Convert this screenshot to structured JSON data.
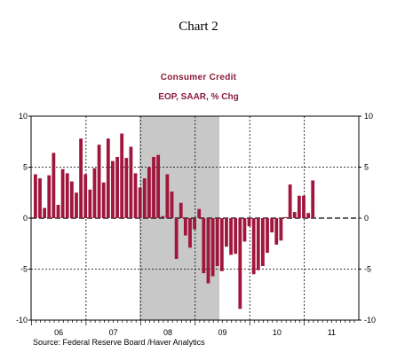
{
  "header": {
    "figure_label": "Chart 2"
  },
  "footer": {
    "source": "Source:  Federal Reserve Board /Haver Analytics"
  },
  "colors": {
    "bars": "#a0163c",
    "recession_shading": "#c8c8c8",
    "title_accent": "#8b1a3a"
  },
  "chart_data": {
    "type": "bar",
    "title": "Consumer Credit",
    "subtitle": "EOP, SAAR, % Chg",
    "grid": true,
    "ylim": [
      -10,
      10
    ],
    "y_ticks": [
      -10,
      -5,
      0,
      5,
      10
    ],
    "y_tick_labels": [
      "-10",
      "-5",
      "0",
      "5",
      "10"
    ],
    "x_tick_labels": [
      "06",
      "07",
      "08",
      "09",
      "10",
      "11"
    ],
    "start": "2006-01",
    "frequency": "monthly",
    "recession": {
      "start": "2007-12",
      "end": "2009-06"
    },
    "values": [
      4.3,
      3.9,
      1.0,
      4.2,
      6.4,
      1.3,
      4.8,
      4.4,
      3.6,
      2.5,
      7.8,
      4.3,
      2.8,
      4.9,
      7.2,
      3.5,
      7.8,
      5.6,
      6.0,
      8.3,
      5.9,
      7.0,
      4.4,
      3.0,
      3.9,
      5.0,
      6.0,
      6.2,
      0.2,
      4.3,
      2.6,
      -4.0,
      1.5,
      -1.7,
      -2.9,
      -1.1,
      0.9,
      -5.4,
      -6.4,
      -5.7,
      -4.7,
      -5.2,
      -2.8,
      -3.6,
      -3.5,
      -8.9,
      -2.3,
      -0.8,
      -5.5,
      -5.1,
      -4.7,
      -3.4,
      -1.4,
      -2.6,
      -2.2,
      0.1,
      3.3,
      0.6,
      2.2,
      2.2,
      0.5,
      3.7
    ]
  }
}
